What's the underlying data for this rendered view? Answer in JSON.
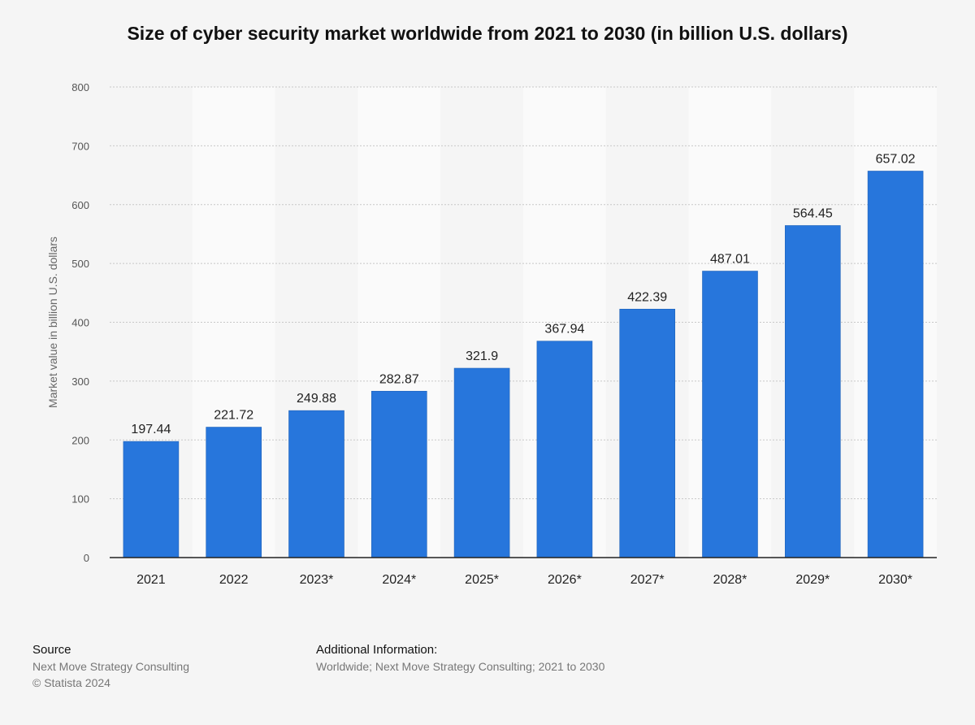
{
  "chart_data": {
    "type": "bar",
    "title": "Size of cyber security market worldwide from 2021 to 2030 (in billion U.S. dollars)",
    "xlabel": "",
    "ylabel": "Market value in billion U.S. dollars",
    "categories": [
      "2021",
      "2022",
      "2023*",
      "2024*",
      "2025*",
      "2026*",
      "2027*",
      "2028*",
      "2029*",
      "2030*"
    ],
    "values": [
      197.44,
      221.72,
      249.88,
      282.87,
      321.9,
      367.94,
      422.39,
      487.01,
      564.45,
      657.02
    ],
    "value_labels": [
      "197.44",
      "221.72",
      "249.88",
      "282.87",
      "321.9",
      "367.94",
      "422.39",
      "487.01",
      "564.45",
      "657.02"
    ],
    "yticks": [
      0,
      100,
      200,
      300,
      400,
      500,
      600,
      700,
      800
    ],
    "ylim": [
      0,
      800
    ],
    "grid": true,
    "legend": "none",
    "bar_color": "#2776dc"
  },
  "footer": {
    "source_heading": "Source",
    "source_lines": [
      "Next Move Strategy Consulting",
      "© Statista 2024"
    ],
    "info_heading": "Additional Information:",
    "info_lines": [
      "Worldwide; Next Move Strategy Consulting; 2021 to 2030"
    ]
  }
}
